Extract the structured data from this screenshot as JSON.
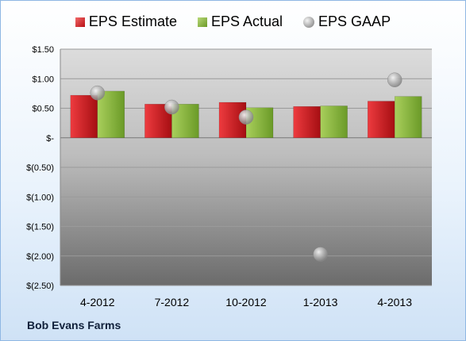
{
  "chart_data": {
    "type": "bar",
    "categories": [
      "4-2012",
      "7-2012",
      "10-2012",
      "1-2013",
      "4-2013"
    ],
    "series": [
      {
        "name": "EPS Estimate",
        "type": "bar",
        "color": "#c8181d",
        "values": [
          0.72,
          0.57,
          0.6,
          0.53,
          0.62
        ]
      },
      {
        "name": "EPS Actual",
        "type": "bar",
        "color": "#7faa36",
        "values": [
          0.79,
          0.57,
          0.51,
          0.54,
          0.7
        ]
      },
      {
        "name": "EPS GAAP",
        "type": "scatter",
        "color": "#a8a8a8",
        "values": [
          0.76,
          0.52,
          0.35,
          -1.97,
          0.98
        ]
      }
    ],
    "ylim": [
      -2.5,
      1.5
    ],
    "yticks": [
      1.5,
      1.0,
      0.5,
      0,
      -0.5,
      -1.0,
      -1.5,
      -2.0,
      -2.5
    ],
    "ytick_labels": [
      "$1.50",
      "$1.00",
      "$0.50",
      "$-",
      "$(0.50)",
      "$(1.00)",
      "$(1.50)",
      "$(2.00)",
      "$(2.50)"
    ],
    "grid": true,
    "legend_position": "top"
  },
  "legend": {
    "estimate": "EPS Estimate",
    "actual": "EPS Actual",
    "gaap": "EPS GAAP"
  },
  "company_name": "Bob Evans Farms"
}
